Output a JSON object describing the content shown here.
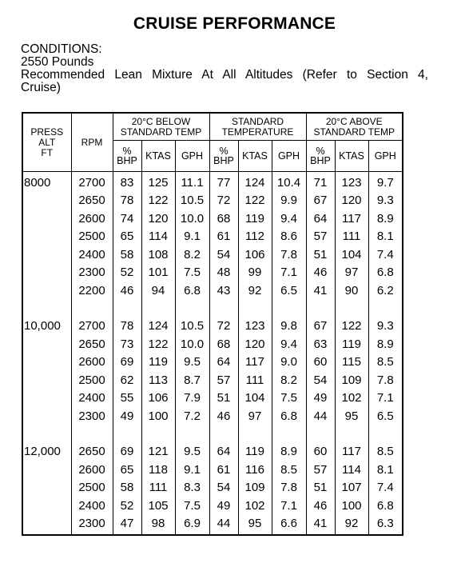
{
  "title": "CRUISE PERFORMANCE",
  "conditions": {
    "label": "CONDITIONS:",
    "weight": "2550 Pounds",
    "mixture_line1": "Recommended Lean Mixture At All Altitudes (Refer to Section 4,",
    "mixture_line2": "Cruise)"
  },
  "table": {
    "headers": {
      "press_alt": [
        "PRESS",
        "ALT",
        "FT"
      ],
      "rpm": "RPM",
      "groups": [
        [
          "20°C BELOW",
          "STANDARD TEMP"
        ],
        [
          "STANDARD",
          "TEMPERATURE"
        ],
        [
          "20°C ABOVE",
          "STANDARD TEMP"
        ]
      ],
      "bhp": [
        "%",
        "BHP"
      ],
      "ktas": "KTAS",
      "gph": "GPH"
    },
    "blocks": [
      {
        "altitude": "8000",
        "rows": [
          [
            "2700",
            "83",
            "125",
            "11.1",
            "77",
            "124",
            "10.4",
            "71",
            "123",
            "9.7"
          ],
          [
            "2650",
            "78",
            "122",
            "10.5",
            "72",
            "122",
            "9.9",
            "67",
            "120",
            "9.3"
          ],
          [
            "2600",
            "74",
            "120",
            "10.0",
            "68",
            "119",
            "9.4",
            "64",
            "117",
            "8.9"
          ],
          [
            "2500",
            "65",
            "114",
            "9.1",
            "61",
            "112",
            "8.6",
            "57",
            "111",
            "8.1"
          ],
          [
            "2400",
            "58",
            "108",
            "8.2",
            "54",
            "106",
            "7.8",
            "51",
            "104",
            "7.4"
          ],
          [
            "2300",
            "52",
            "101",
            "7.5",
            "48",
            "99",
            "7.1",
            "46",
            "97",
            "6.8"
          ],
          [
            "2200",
            "46",
            "94",
            "6.8",
            "43",
            "92",
            "6.5",
            "41",
            "90",
            "6.2"
          ]
        ]
      },
      {
        "altitude": "10,000",
        "rows": [
          [
            "2700",
            "78",
            "124",
            "10.5",
            "72",
            "123",
            "9.8",
            "67",
            "122",
            "9.3"
          ],
          [
            "2650",
            "73",
            "122",
            "10.0",
            "68",
            "120",
            "9.4",
            "63",
            "119",
            "8.9"
          ],
          [
            "2600",
            "69",
            "119",
            "9.5",
            "64",
            "117",
            "9.0",
            "60",
            "115",
            "8.5"
          ],
          [
            "2500",
            "62",
            "113",
            "8.7",
            "57",
            "111",
            "8.2",
            "54",
            "109",
            "7.8"
          ],
          [
            "2400",
            "55",
            "106",
            "7.9",
            "51",
            "104",
            "7.5",
            "49",
            "102",
            "7.1"
          ],
          [
            "2300",
            "49",
            "100",
            "7.2",
            "46",
            "97",
            "6.8",
            "44",
            "95",
            "6.5"
          ]
        ]
      },
      {
        "altitude": "12,000",
        "rows": [
          [
            "2650",
            "69",
            "121",
            "9.5",
            "64",
            "119",
            "8.9",
            "60",
            "117",
            "8.5"
          ],
          [
            "2600",
            "65",
            "118",
            "9.1",
            "61",
            "116",
            "8.5",
            "57",
            "114",
            "8.1"
          ],
          [
            "2500",
            "58",
            "111",
            "8.3",
            "54",
            "109",
            "7.8",
            "51",
            "107",
            "7.4"
          ],
          [
            "2400",
            "52",
            "105",
            "7.5",
            "49",
            "102",
            "7.1",
            "46",
            "100",
            "6.8"
          ],
          [
            "2300",
            "47",
            "98",
            "6.9",
            "44",
            "95",
            "6.6",
            "41",
            "92",
            "6.3"
          ]
        ]
      }
    ]
  }
}
